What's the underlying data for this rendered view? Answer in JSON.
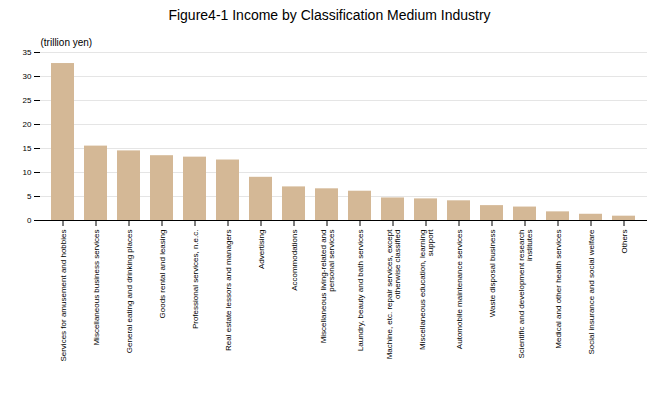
{
  "chart_data": {
    "type": "bar",
    "title": "Figure4-1  Income by Classification Medium Industry",
    "ylabel": "(trillion yen)",
    "categories": [
      "Services for amusement and hobbies",
      "Miscellaneous business services",
      "General eating and drinking places",
      "Goods rental and leasing",
      "Professional services, n.e.c.",
      "Real estate lessors and managers",
      "Advertising",
      "Accommodations",
      "Miscellaneous living-related and\npersonal services",
      "Laundry, beauty and bath services",
      "Machine, etc. repair services, except\notherwise classified",
      "Miscellaneous education, learning\nsupport",
      "Automobile maintenance services",
      "Waste disposal business",
      "Scientific and development research\ninstitutes",
      "Medical and other health services",
      "Social insurance and social welfare",
      "Others"
    ],
    "values": [
      32.7,
      15.5,
      14.5,
      13.5,
      13.2,
      12.6,
      9.0,
      7.0,
      6.6,
      6.1,
      4.7,
      4.5,
      4.1,
      3.1,
      2.8,
      1.8,
      1.3,
      0.9
    ],
    "color": "#D4B896",
    "ylim": [
      0,
      35
    ],
    "yticks": [
      0,
      5,
      10,
      15,
      20,
      25,
      30,
      35
    ],
    "grid": true
  }
}
